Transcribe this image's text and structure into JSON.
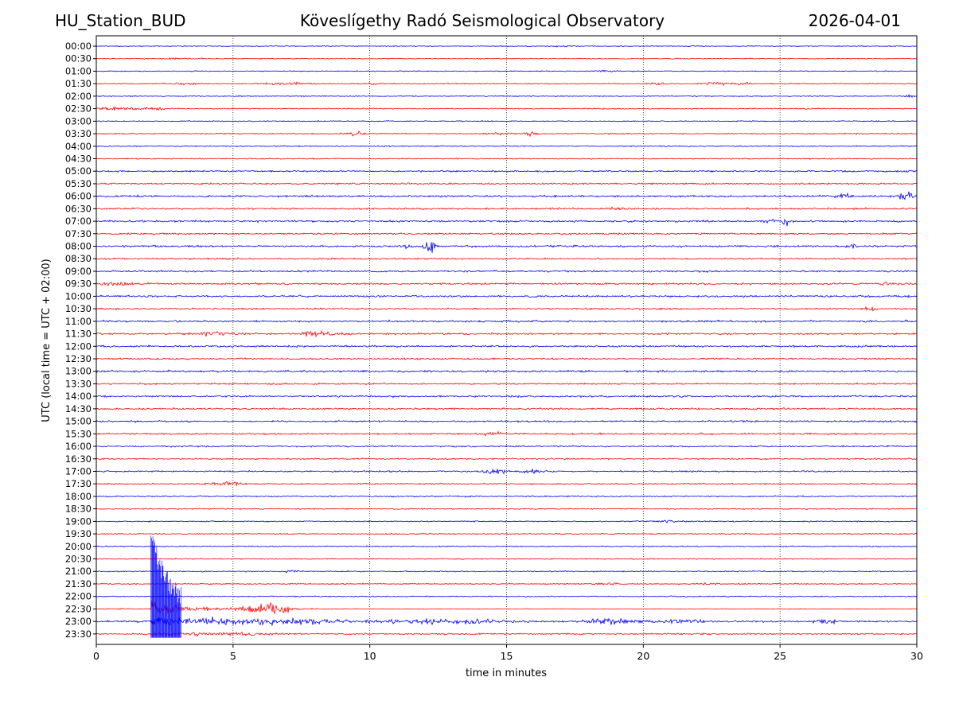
{
  "header": {
    "station": "HU_Station_BUD",
    "observatory": "Köveslígethy Radó Seismological Observatory",
    "date": "2026-04-01"
  },
  "chart_data": {
    "type": "line",
    "subtype": "helicorder",
    "xlabel": "time in minutes",
    "ylabel": "UTC (local time = UTC + 02:00)",
    "xlim": [
      0,
      30
    ],
    "xticks": [
      0,
      5,
      10,
      15,
      20,
      25,
      30
    ],
    "vertical_grid": "dotted",
    "trace_colors": [
      "#0000ff",
      "#ff0000"
    ],
    "rows": [
      {
        "label": "00:00",
        "color": "#0000ff",
        "amplitude": 0.18,
        "events": [
          {
            "t": 17.0,
            "amp": 0.25,
            "dur": 0.6
          }
        ]
      },
      {
        "label": "00:30",
        "color": "#ff0000",
        "amplitude": 0.18,
        "events": [
          {
            "t": 3.0,
            "amp": 0.22,
            "dur": 1.5
          }
        ]
      },
      {
        "label": "01:00",
        "color": "#0000ff",
        "amplitude": 0.2,
        "events": [
          {
            "t": 18.6,
            "amp": 0.4,
            "dur": 0.6
          }
        ]
      },
      {
        "label": "01:30",
        "color": "#ff0000",
        "amplitude": 0.22,
        "events": [
          {
            "t": 3.2,
            "amp": 0.35,
            "dur": 1.2
          },
          {
            "t": 6.9,
            "amp": 0.45,
            "dur": 1.6
          },
          {
            "t": 10.2,
            "amp": 0.3,
            "dur": 0.8
          },
          {
            "t": 20.5,
            "amp": 0.3,
            "dur": 0.8
          },
          {
            "t": 22.6,
            "amp": 0.9,
            "dur": 0.6
          },
          {
            "t": 23.5,
            "amp": 0.7,
            "dur": 0.7
          }
        ]
      },
      {
        "label": "02:00",
        "color": "#0000ff",
        "amplitude": 0.2,
        "events": [
          {
            "t": 29.7,
            "amp": 0.45,
            "dur": 0.6
          }
        ]
      },
      {
        "label": "02:30",
        "color": "#ff0000",
        "amplitude": 0.22,
        "events": [
          {
            "t": 0.8,
            "amp": 0.5,
            "dur": 1.8
          },
          {
            "t": 2.2,
            "amp": 0.35,
            "dur": 0.8
          }
        ]
      },
      {
        "label": "03:00",
        "color": "#0000ff",
        "amplitude": 0.2,
        "events": []
      },
      {
        "label": "03:30",
        "color": "#ff0000",
        "amplitude": 0.22,
        "events": [
          {
            "t": 9.5,
            "amp": 0.9,
            "dur": 0.6
          },
          {
            "t": 14.8,
            "amp": 0.4,
            "dur": 1.0
          },
          {
            "t": 15.9,
            "amp": 0.9,
            "dur": 0.4
          }
        ]
      },
      {
        "label": "04:00",
        "color": "#0000ff",
        "amplitude": 0.22,
        "events": []
      },
      {
        "label": "04:30",
        "color": "#ff0000",
        "amplitude": 0.22,
        "events": []
      },
      {
        "label": "05:00",
        "color": "#0000ff",
        "amplitude": 0.32,
        "events": [
          {
            "t": 29.5,
            "amp": 0.5,
            "dur": 0.5
          }
        ]
      },
      {
        "label": "05:30",
        "color": "#ff0000",
        "amplitude": 0.34,
        "events": []
      },
      {
        "label": "06:00",
        "color": "#0000ff",
        "amplitude": 0.38,
        "events": [
          {
            "t": 27.3,
            "amp": 1.2,
            "dur": 0.5
          },
          {
            "t": 29.6,
            "amp": 1.6,
            "dur": 0.6
          }
        ]
      },
      {
        "label": "06:30",
        "color": "#ff0000",
        "amplitude": 0.34,
        "events": [
          {
            "t": 19.0,
            "amp": 0.5,
            "dur": 0.6
          }
        ]
      },
      {
        "label": "07:00",
        "color": "#0000ff",
        "amplitude": 0.38,
        "events": [
          {
            "t": 24.6,
            "amp": 0.8,
            "dur": 0.4
          },
          {
            "t": 25.2,
            "amp": 1.5,
            "dur": 0.3
          }
        ]
      },
      {
        "label": "07:30",
        "color": "#ff0000",
        "amplitude": 0.32,
        "events": []
      },
      {
        "label": "08:00",
        "color": "#0000ff",
        "amplitude": 0.38,
        "events": [
          {
            "t": 11.4,
            "amp": 1.2,
            "dur": 0.3
          },
          {
            "t": 12.2,
            "amp": 2.2,
            "dur": 0.4
          },
          {
            "t": 27.6,
            "amp": 1.0,
            "dur": 0.4
          }
        ]
      },
      {
        "label": "08:30",
        "color": "#ff0000",
        "amplitude": 0.32,
        "events": []
      },
      {
        "label": "09:00",
        "color": "#0000ff",
        "amplitude": 0.36,
        "events": []
      },
      {
        "label": "09:30",
        "color": "#ff0000",
        "amplitude": 0.36,
        "events": [
          {
            "t": 0.8,
            "amp": 0.6,
            "dur": 1.6
          },
          {
            "t": 29.0,
            "amp": 0.5,
            "dur": 0.8
          }
        ]
      },
      {
        "label": "10:00",
        "color": "#0000ff",
        "amplitude": 0.38,
        "events": []
      },
      {
        "label": "10:30",
        "color": "#ff0000",
        "amplitude": 0.32,
        "events": [
          {
            "t": 28.3,
            "amp": 0.6,
            "dur": 0.5
          }
        ]
      },
      {
        "label": "11:00",
        "color": "#0000ff",
        "amplitude": 0.38,
        "events": []
      },
      {
        "label": "11:30",
        "color": "#ff0000",
        "amplitude": 0.34,
        "events": [
          {
            "t": 4.3,
            "amp": 0.8,
            "dur": 1.4
          },
          {
            "t": 7.9,
            "amp": 1.0,
            "dur": 0.6
          },
          {
            "t": 8.6,
            "amp": 0.6,
            "dur": 1.0
          }
        ]
      },
      {
        "label": "12:00",
        "color": "#0000ff",
        "amplitude": 0.36,
        "events": []
      },
      {
        "label": "12:30",
        "color": "#ff0000",
        "amplitude": 0.32,
        "events": []
      },
      {
        "label": "13:00",
        "color": "#0000ff",
        "amplitude": 0.4,
        "events": []
      },
      {
        "label": "13:30",
        "color": "#ff0000",
        "amplitude": 0.34,
        "events": []
      },
      {
        "label": "14:00",
        "color": "#0000ff",
        "amplitude": 0.36,
        "events": []
      },
      {
        "label": "14:30",
        "color": "#ff0000",
        "amplitude": 0.34,
        "events": []
      },
      {
        "label": "15:00",
        "color": "#0000ff",
        "amplitude": 0.34,
        "events": []
      },
      {
        "label": "15:30",
        "color": "#ff0000",
        "amplitude": 0.34,
        "events": [
          {
            "t": 14.5,
            "amp": 0.5,
            "dur": 1.0
          }
        ]
      },
      {
        "label": "16:00",
        "color": "#0000ff",
        "amplitude": 0.3,
        "events": []
      },
      {
        "label": "16:30",
        "color": "#ff0000",
        "amplitude": 0.28,
        "events": []
      },
      {
        "label": "17:00",
        "color": "#0000ff",
        "amplitude": 0.3,
        "events": [
          {
            "t": 14.6,
            "amp": 1.2,
            "dur": 0.8
          },
          {
            "t": 16.0,
            "amp": 0.5,
            "dur": 1.2
          }
        ]
      },
      {
        "label": "17:30",
        "color": "#ff0000",
        "amplitude": 0.28,
        "events": [
          {
            "t": 4.8,
            "amp": 0.6,
            "dur": 1.2
          }
        ]
      },
      {
        "label": "18:00",
        "color": "#0000ff",
        "amplitude": 0.26,
        "events": []
      },
      {
        "label": "18:30",
        "color": "#ff0000",
        "amplitude": 0.24,
        "events": []
      },
      {
        "label": "19:00",
        "color": "#0000ff",
        "amplitude": 0.24,
        "events": [
          {
            "t": 21.0,
            "amp": 0.4,
            "dur": 1.0
          }
        ]
      },
      {
        "label": "19:30",
        "color": "#ff0000",
        "amplitude": 0.22,
        "events": []
      },
      {
        "label": "20:00",
        "color": "#0000ff",
        "amplitude": 0.22,
        "events": []
      },
      {
        "label": "20:30",
        "color": "#ff0000",
        "amplitude": 0.22,
        "events": []
      },
      {
        "label": "21:00",
        "color": "#0000ff",
        "amplitude": 0.24,
        "events": [
          {
            "t": 7.1,
            "amp": 0.7,
            "dur": 0.3
          }
        ]
      },
      {
        "label": "21:30",
        "color": "#ff0000",
        "amplitude": 0.22,
        "events": [
          {
            "t": 18.8,
            "amp": 0.4,
            "dur": 1.0
          },
          {
            "t": 22.5,
            "amp": 0.5,
            "dur": 0.6
          }
        ]
      },
      {
        "label": "22:00",
        "color": "#0000ff",
        "amplitude": 0.22,
        "events": []
      },
      {
        "label": "22:30",
        "color": "#ff0000",
        "amplitude": 0.22,
        "events": []
      },
      {
        "label": "23:00",
        "color": "#0000ff",
        "amplitude": 0.36,
        "events": [
          {
            "t": 4.5,
            "amp": 1.0,
            "dur": 4.5
          },
          {
            "t": 7.5,
            "amp": 0.8,
            "dur": 3.5
          },
          {
            "t": 11.5,
            "amp": 0.6,
            "dur": 3.0
          },
          {
            "t": 14.0,
            "amp": 0.5,
            "dur": 3.0
          },
          {
            "t": 18.8,
            "amp": 1.2,
            "dur": 1.6
          },
          {
            "t": 21.5,
            "amp": 0.6,
            "dur": 2.0
          },
          {
            "t": 26.6,
            "amp": 0.8,
            "dur": 0.8
          }
        ]
      },
      {
        "label": "23:30",
        "color": "#ff0000",
        "amplitude": 0.3,
        "events": [
          {
            "t": 4.5,
            "amp": 0.3,
            "dur": 2.5
          }
        ]
      }
    ],
    "major_event": {
      "row": "22:30",
      "onset_minutes": 2.0,
      "peak_minutes": 2.2,
      "secondary_burst_minutes": 6.3,
      "coda_end_minutes": 7.1,
      "color": "#0000ff"
    }
  }
}
